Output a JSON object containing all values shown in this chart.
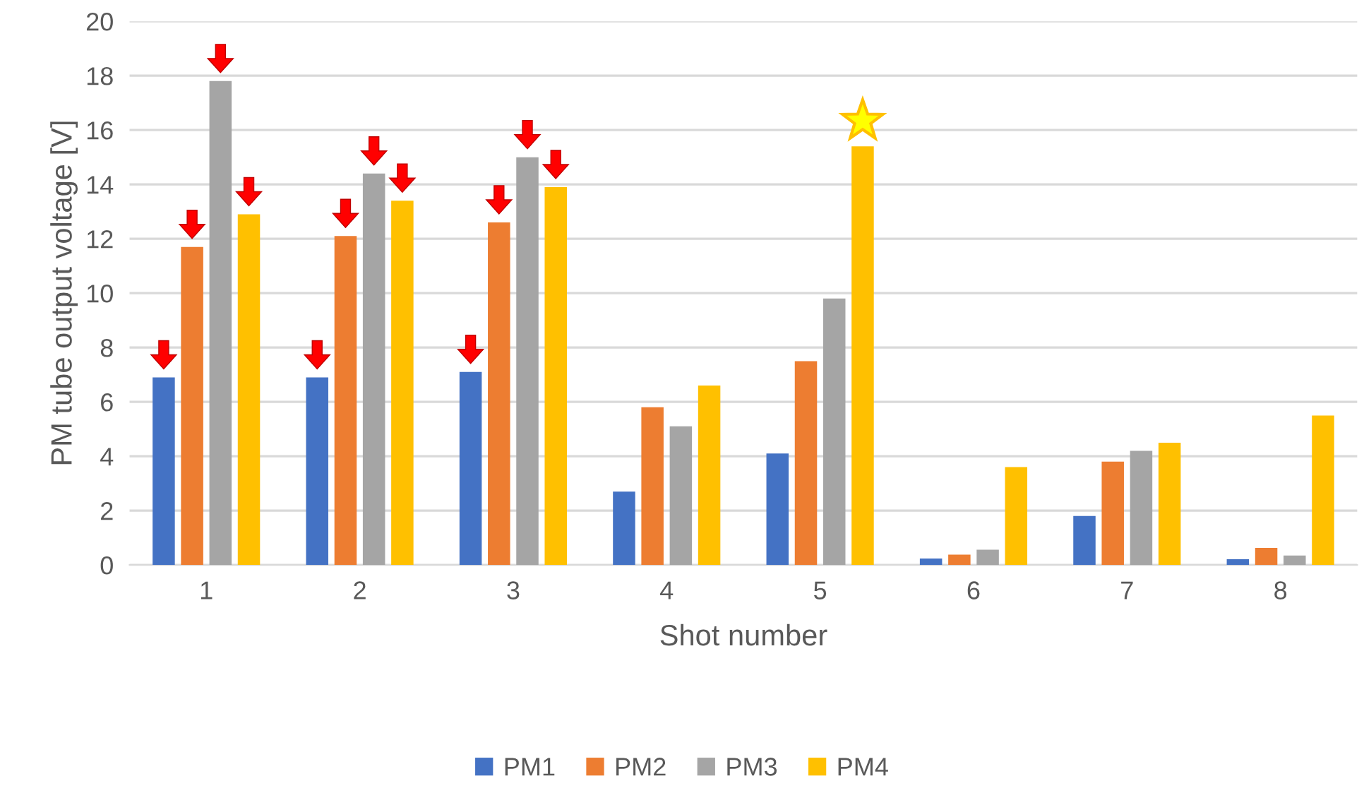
{
  "chart_data": {
    "type": "bar",
    "xlabel": "Shot number",
    "ylabel": "PM tube output voltage [V]",
    "categories": [
      "1",
      "2",
      "3",
      "4",
      "5",
      "6",
      "7",
      "8"
    ],
    "series": [
      {
        "name": "PM1",
        "color": "#4472c4",
        "values": [
          6.9,
          6.9,
          7.1,
          2.7,
          4.1,
          0.24,
          1.8,
          0.21
        ]
      },
      {
        "name": "PM2",
        "color": "#ed7d31",
        "values": [
          11.7,
          12.1,
          12.6,
          5.8,
          7.5,
          0.38,
          3.8,
          0.63
        ]
      },
      {
        "name": "PM3",
        "color": "#a5a5a5",
        "values": [
          17.8,
          14.4,
          15.0,
          5.1,
          9.8,
          0.56,
          4.2,
          0.35
        ]
      },
      {
        "name": "PM4",
        "color": "#ffc000",
        "values": [
          12.9,
          13.4,
          13.9,
          6.6,
          15.4,
          3.6,
          4.5,
          5.5
        ]
      }
    ],
    "ylim": [
      0,
      20
    ],
    "yticks": [
      0,
      2,
      4,
      6,
      8,
      10,
      12,
      14,
      16,
      18,
      20
    ],
    "grid": "y",
    "legend": "bottom"
  }
}
